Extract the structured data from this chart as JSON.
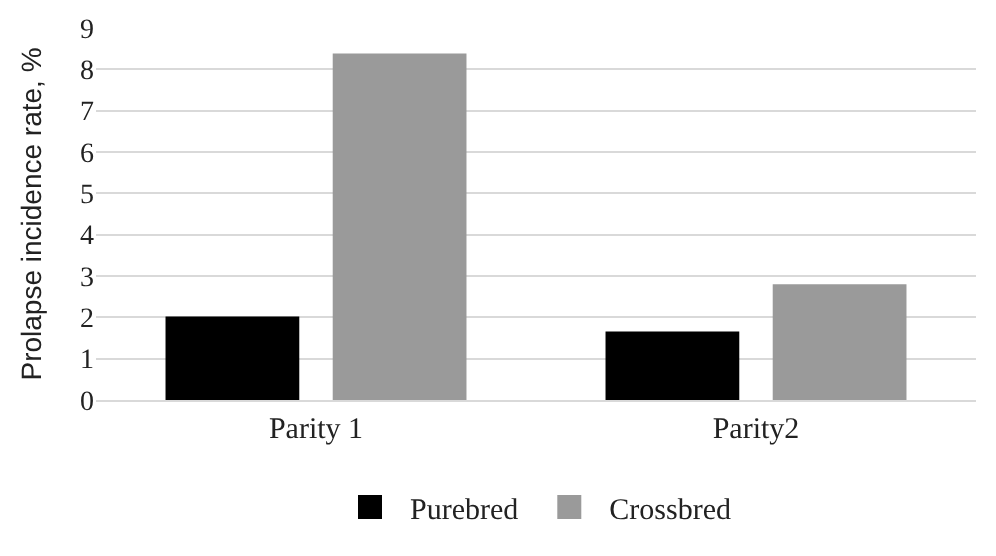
{
  "chart_data": {
    "type": "bar",
    "ylabel": "Prolapse incidence rate, %",
    "categories": [
      "Parity 1",
      "Parity2"
    ],
    "series": [
      {
        "name": "Purebred",
        "color": "#000000",
        "values": [
          2.02,
          1.66
        ]
      },
      {
        "name": "Crossbred",
        "color": "#9a9a9a",
        "values": [
          8.38,
          2.8
        ]
      }
    ],
    "ylim": [
      0,
      9
    ],
    "yticks": [
      0,
      1,
      2,
      3,
      4,
      5,
      6,
      7,
      8,
      9
    ],
    "grid": "y",
    "legend": "bottom"
  }
}
